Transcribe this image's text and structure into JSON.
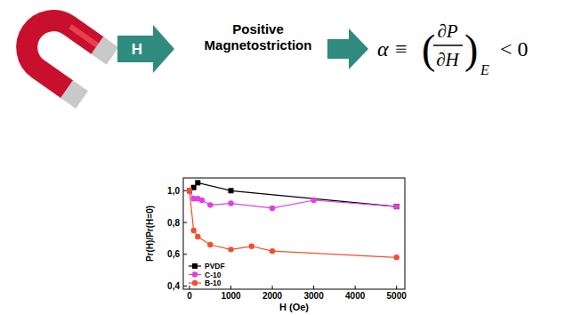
{
  "diagram": {
    "arrow_label": "H",
    "step_label": "Positive Magnetostriction",
    "formula": {
      "lhs": "α ≡",
      "open": "(",
      "numerator": "∂P",
      "denominator": "∂H",
      "close": ")",
      "subscript": "E",
      "rhs": "< 0"
    }
  },
  "chart_data": {
    "type": "line",
    "xlabel": "H (Oe)",
    "ylabel": "Pr(H)/Pr(H=0)",
    "xlim": [
      -150,
      5200
    ],
    "ylim": [
      0.38,
      1.08
    ],
    "xticks": [
      0,
      1000,
      2000,
      3000,
      4000,
      5000
    ],
    "yticks": [
      {
        "value": 0.4,
        "label": "0,4"
      },
      {
        "value": 0.6,
        "label": "0,6"
      },
      {
        "value": 0.8,
        "label": "0,8"
      },
      {
        "value": 1.0,
        "label": "1,0"
      }
    ],
    "legend": "lower left",
    "series": [
      {
        "name": "PVDF",
        "color": "#000000",
        "marker": "square",
        "x": [
          0,
          100,
          200,
          1000,
          5000
        ],
        "values": [
          1.0,
          1.02,
          1.05,
          1.0,
          0.9
        ]
      },
      {
        "name": "C-10",
        "color": "#e040e0",
        "marker": "circle",
        "x": [
          0,
          100,
          200,
          300,
          500,
          1000,
          2000,
          3000,
          5000
        ],
        "values": [
          1.0,
          0.95,
          0.95,
          0.94,
          0.91,
          0.92,
          0.89,
          0.94,
          0.9
        ]
      },
      {
        "name": "B-10",
        "color": "#f05030",
        "marker": "circle",
        "x": [
          0,
          100,
          200,
          500,
          1000,
          1500,
          2000,
          5000
        ],
        "values": [
          1.0,
          0.75,
          0.71,
          0.66,
          0.63,
          0.65,
          0.62,
          0.58
        ]
      }
    ]
  }
}
